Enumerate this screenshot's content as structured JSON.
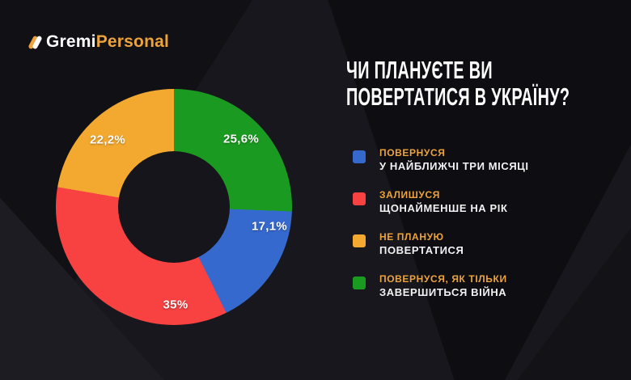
{
  "brand": {
    "name_primary": "Gremi",
    "name_accent": "Personal",
    "accent_color": "#eda33c"
  },
  "title": {
    "line1": "ЧИ ПЛАНУЄТЕ ВИ",
    "line2": "ПОВЕРТАТИСЯ В УКРАЇНУ?"
  },
  "chart_data": {
    "type": "pie",
    "donut": true,
    "title": "ЧИ ПЛАНУЄТЕ ВИ ПОВЕРТАТИСЯ В УКРАЇНУ?",
    "start_angle_deg": 0,
    "direction": "clockwise",
    "legend_position": "right",
    "segments": [
      {
        "label": "ПОВЕРНУСЯ, ЯК ТІЛЬКИ ЗАВЕРШИТЬСЯ ВІЙНА",
        "value": 25.6,
        "display": "25,6%",
        "color": "#1b9a21"
      },
      {
        "label": "ПОВЕРНУСЯ У НАЙБЛИЖЧІ ТРИ МІСЯЦІ",
        "value": 17.1,
        "display": "17,1%",
        "color": "#3569cd"
      },
      {
        "label": "ЗАЛИШУСЯ ЩОНАЙМЕНШЕ НА РІК",
        "value": 35,
        "display": "35%",
        "color": "#f84141"
      },
      {
        "label": "НЕ ПЛАНУЮ ПОВЕРТАТИСЯ",
        "value": 22.2,
        "display": "22,2%",
        "color": "#f3a92f"
      }
    ]
  },
  "legend": {
    "items": [
      {
        "heading": "ПОВЕРНУСЯ",
        "sub": "У НАЙБЛИЖЧІ ТРИ МІСЯЦІ",
        "color": "#3569cd"
      },
      {
        "heading": "ЗАЛИШУСЯ",
        "sub": "ЩОНАЙМЕНШЕ НА РІК",
        "color": "#f84141"
      },
      {
        "heading": "НЕ ПЛАНУЮ",
        "sub": "ПОВЕРТАТИСЯ",
        "color": "#f3a92f"
      },
      {
        "heading": "ПОВЕРНУСЯ, ЯК ТІЛЬКИ",
        "sub": "ЗАВЕРШИТЬСЯ ВІЙНА",
        "color": "#1b9a21"
      }
    ]
  }
}
